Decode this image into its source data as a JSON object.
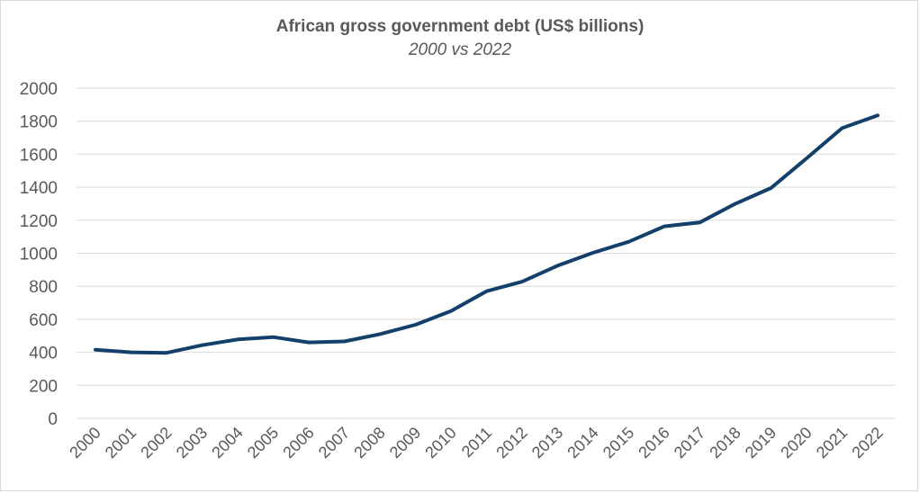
{
  "chart_data": {
    "type": "line",
    "title": "African gross government debt (US$ billions)",
    "subtitle": "2000 vs 2022",
    "xlabel": "",
    "ylabel": "",
    "ylim": [
      0,
      2000
    ],
    "yticks": [
      "0",
      "200",
      "400",
      "600",
      "800",
      "1000",
      "1200",
      "1400",
      "1600",
      "1800",
      "2000"
    ],
    "categories": [
      "2000",
      "2001",
      "2002",
      "2003",
      "2004",
      "2005",
      "2006",
      "2007",
      "2008",
      "2009",
      "2010",
      "2011",
      "2012",
      "2013",
      "2014",
      "2015",
      "2016",
      "2017",
      "2018",
      "2019",
      "2020",
      "2021",
      "2022"
    ],
    "series": [
      {
        "values": [
          415,
          400,
          397,
          443,
          478,
          492,
          460,
          466,
          510,
          567,
          650,
          770,
          828,
          925,
          1003,
          1070,
          1163,
          1187,
          1300,
          1395,
          1575,
          1758,
          1835
        ],
        "color": "#12406a"
      }
    ],
    "grid": true,
    "legend": "none"
  }
}
